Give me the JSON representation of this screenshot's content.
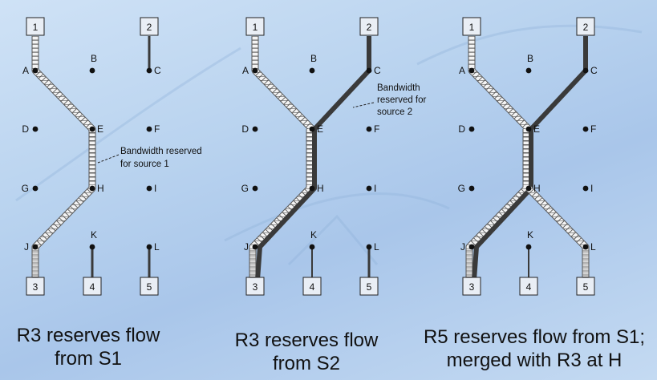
{
  "panels": [
    {
      "caption_line1": "R3 reserves flow",
      "caption_line2": "from S1",
      "annotation_lines": [
        "Bandwidth reserved",
        "for source 1"
      ]
    },
    {
      "caption_line1": "R3 reserves flow",
      "caption_line2": "from S2",
      "annotation_lines": [
        "Bandwidth",
        "reserved for",
        "source 2"
      ]
    },
    {
      "caption_line1": "R5 reserves flow from S1;",
      "caption_line2": "merged with R3 at H",
      "annotation_lines": []
    }
  ],
  "nodes": [
    "A",
    "B",
    "C",
    "D",
    "E",
    "F",
    "G",
    "H",
    "I",
    "J",
    "K",
    "L"
  ],
  "top_boxes": [
    "1",
    "2"
  ],
  "bottom_boxes": [
    "3",
    "4",
    "5"
  ],
  "colors": {
    "background": "#bcd4ef",
    "thick_link": "#3a3a3a",
    "hatched_link_fill": "#f4f4f4",
    "hatched_link_stroke": "#555555"
  }
}
